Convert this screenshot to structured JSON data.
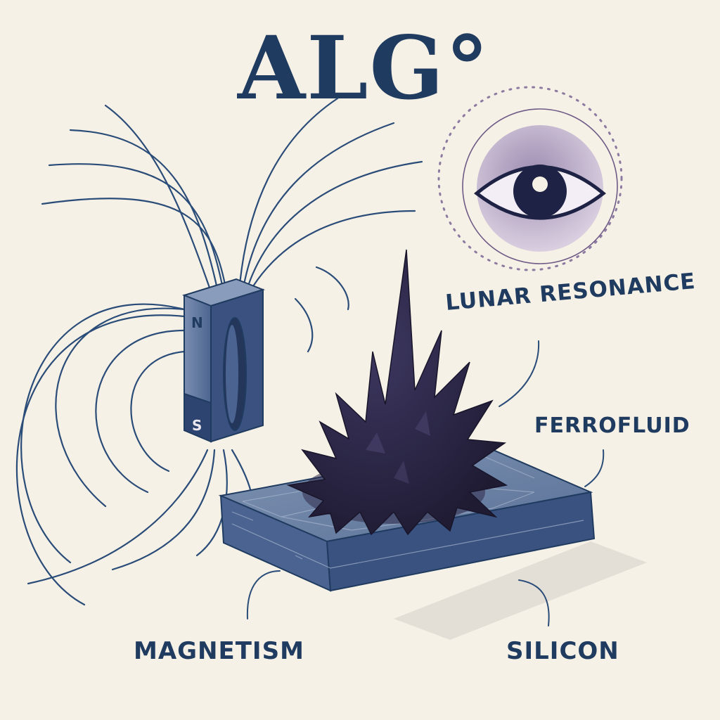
{
  "title": "ALG°",
  "labels": {
    "lunar_resonance": "LUNAR RESONANCE",
    "ferrofluid": "FERROFLUID",
    "magnetism": "MAGNETISM",
    "silicon": "SILICON"
  },
  "magnet": {
    "north": "N",
    "south": "S"
  },
  "icons": {
    "eye": "eye-icon",
    "magnet": "bar-magnet",
    "ferrofluid": "spiky-ferrofluid",
    "silicon": "silicon-slab"
  },
  "colors": {
    "background": "#f6f1e6",
    "ink": "#1f3b60",
    "eye_disc": "#b8a9c4",
    "ferrofluid": "#2d2846",
    "slab_top": "#6e85a6",
    "slab_side": "#3e5680"
  }
}
